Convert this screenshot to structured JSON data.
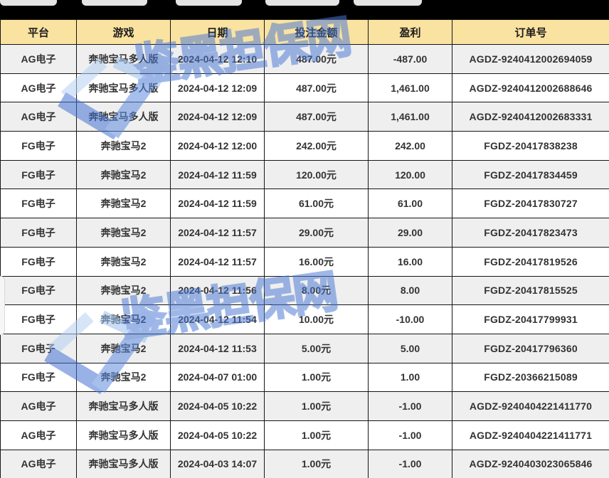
{
  "top_bar": {
    "note": "row of partially cut-off buttons on black bar"
  },
  "table": {
    "columns": [
      "平台",
      "游戏",
      "日期",
      "投注金额",
      "盈利",
      "订单号"
    ],
    "rows": [
      {
        "platform": "AG电子",
        "game": "奔驰宝马多人版",
        "date": "2024-04-12 12:10",
        "amount": "487.00元",
        "profit": "-487.00",
        "order": "AGDZ-9240412002694059"
      },
      {
        "platform": "AG电子",
        "game": "奔驰宝马多人版",
        "date": "2024-04-12 12:09",
        "amount": "487.00元",
        "profit": "1,461.00",
        "order": "AGDZ-9240412002688646"
      },
      {
        "platform": "AG电子",
        "game": "奔驰宝马多人版",
        "date": "2024-04-12 12:09",
        "amount": "487.00元",
        "profit": "1,461.00",
        "order": "AGDZ-9240412002683331"
      },
      {
        "platform": "FG电子",
        "game": "奔驰宝马2",
        "date": "2024-04-12 12:00",
        "amount": "242.00元",
        "profit": "242.00",
        "order": "FGDZ-20417838238"
      },
      {
        "platform": "FG电子",
        "game": "奔驰宝马2",
        "date": "2024-04-12 11:59",
        "amount": "120.00元",
        "profit": "120.00",
        "order": "FGDZ-20417834459"
      },
      {
        "platform": "FG电子",
        "game": "奔驰宝马2",
        "date": "2024-04-12 11:59",
        "amount": "61.00元",
        "profit": "61.00",
        "order": "FGDZ-20417830727"
      },
      {
        "platform": "FG电子",
        "game": "奔驰宝马2",
        "date": "2024-04-12 11:57",
        "amount": "29.00元",
        "profit": "29.00",
        "order": "FGDZ-20417823473"
      },
      {
        "platform": "FG电子",
        "game": "奔驰宝马2",
        "date": "2024-04-12 11:57",
        "amount": "16.00元",
        "profit": "16.00",
        "order": "FGDZ-20417819526"
      },
      {
        "platform": "FG电子",
        "game": "奔驰宝马2",
        "date": "2024-04-12 11:56",
        "amount": "8.00元",
        "profit": "8.00",
        "order": "FGDZ-20417815525"
      },
      {
        "platform": "FG电子",
        "game": "奔驰宝马2",
        "date": "2024-04-12 11:54",
        "amount": "10.00元",
        "profit": "-10.00",
        "order": "FGDZ-20417799931"
      },
      {
        "platform": "FG电子",
        "game": "奔驰宝马2",
        "date": "2024-04-12 11:53",
        "amount": "5.00元",
        "profit": "5.00",
        "order": "FGDZ-20417796360"
      },
      {
        "platform": "FG电子",
        "game": "奔驰宝马2",
        "date": "2024-04-07 01:00",
        "amount": "1.00元",
        "profit": "1.00",
        "order": "FGDZ-20366215089"
      },
      {
        "platform": "AG电子",
        "game": "奔驰宝马多人版",
        "date": "2024-04-05 10:22",
        "amount": "1.00元",
        "profit": "-1.00",
        "order": "AGDZ-9240404221411770"
      },
      {
        "platform": "AG电子",
        "game": "奔驰宝马多人版",
        "date": "2024-04-05 10:22",
        "amount": "1.00元",
        "profit": "-1.00",
        "order": "AGDZ-9240404221411771"
      },
      {
        "platform": "AG电子",
        "game": "奔驰宝马多人版",
        "date": "2024-04-03 14:07",
        "amount": "1.00元",
        "profit": "-1.00",
        "order": "AGDZ-9240403023065846"
      }
    ]
  },
  "watermark": {
    "text": "鉴黑担保网"
  },
  "colors": {
    "header_bg": "#fae2a0",
    "row_alt_bg": "#efefef",
    "profit_positive": "#7ec41e",
    "profit_negative": "#e60000",
    "watermark_blue": "#4a78d4",
    "top_bar_bg": "#000000"
  }
}
